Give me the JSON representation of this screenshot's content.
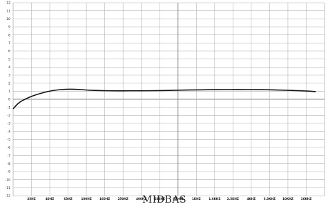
{
  "chart_data": {
    "type": "line",
    "title": "",
    "xlabel": "",
    "ylabel": "",
    "caption": "MIDBAS",
    "x_scale": "log",
    "x_tick_labels": [
      "25HZ",
      "40HZ",
      "63HZ",
      "100HZ",
      "160HZ",
      "250HZ",
      "400HZ",
      "630HZ",
      "630HZ",
      "1KHZ",
      "1.6KHZ",
      "2.5KHZ",
      "4KHZ",
      "6.3KHZ",
      "10KHZ",
      "16KHZ"
    ],
    "y_tick_labels": [
      "12",
      "11",
      "10",
      "9",
      "8",
      "7",
      "6",
      "5",
      "4",
      "3",
      "2",
      "1",
      "0",
      "-1",
      "-2",
      "-3",
      "-4",
      "-5",
      "-6",
      "-7",
      "-8",
      "-9",
      "-10",
      "-11",
      "-12"
    ],
    "ylim": [
      -12,
      12
    ],
    "grid": true,
    "series": [
      {
        "x": [
          16,
          18,
          20,
          25,
          31.5,
          40,
          50,
          63,
          80,
          100,
          160,
          250,
          400,
          630,
          1000,
          1600,
          2500,
          4000,
          6300,
          10000,
          16000,
          20000
        ],
        "y": [
          -1.2,
          -0.6,
          -0.2,
          0.35,
          0.75,
          1.05,
          1.2,
          1.25,
          1.2,
          1.12,
          1.05,
          1.05,
          1.06,
          1.1,
          1.15,
          1.18,
          1.2,
          1.2,
          1.18,
          1.12,
          1.02,
          0.95
        ]
      }
    ],
    "colors": {
      "line": "#111111",
      "grid": "#b4b4b4",
      "axis_mid": "#8a8a8a",
      "frame": "#999999"
    }
  }
}
